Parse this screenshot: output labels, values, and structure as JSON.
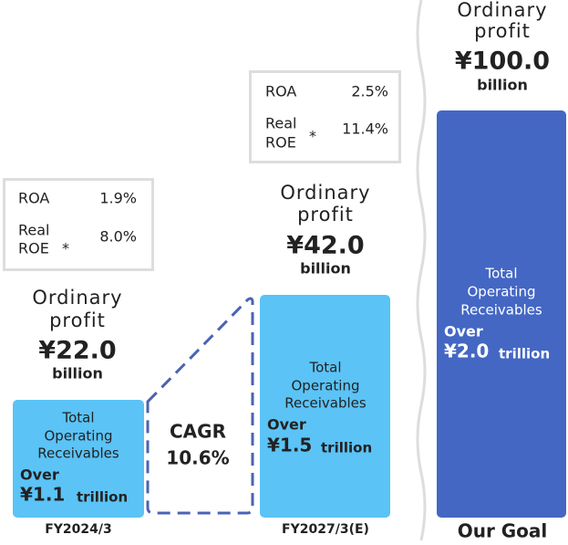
{
  "columns": [
    {
      "period": "FY2024/3",
      "roa_label": "ROA",
      "roa": "1.9%",
      "roe_label": [
        "Real",
        "ROE"
      ],
      "roe_mark": "*",
      "roe": "8.0%",
      "profit_label": [
        "Ordinary",
        "profit"
      ],
      "profit": "¥22.0",
      "profit_unit": "billion",
      "bar_title": [
        "Total",
        "Operating",
        "Receivables"
      ],
      "over": "Over",
      "amount": "¥1.1",
      "amount_unit": "trillion"
    },
    {
      "period": "FY2027/3(E)",
      "roa_label": "ROA",
      "roa": "2.5%",
      "roe_label": [
        "Real",
        "ROE"
      ],
      "roe_mark": "*",
      "roe": "11.4%",
      "profit_label": [
        "Ordinary",
        "profit"
      ],
      "profit": "¥42.0",
      "profit_unit": "billion",
      "bar_title": [
        "Total",
        "Operating",
        "Receivables"
      ],
      "over": "Over",
      "amount": "¥1.5",
      "amount_unit": "trillion"
    },
    {
      "period": "Our Goal",
      "profit_label": [
        "Ordinary",
        "profit"
      ],
      "profit": "¥100.0",
      "profit_unit": "billion",
      "bar_title": [
        "Total",
        "Operating",
        "Receivables"
      ],
      "over": "Over",
      "amount": "¥2.0",
      "amount_unit": "trillion"
    }
  ],
  "cagr": {
    "label": "CAGR",
    "value": "10.6%"
  }
}
